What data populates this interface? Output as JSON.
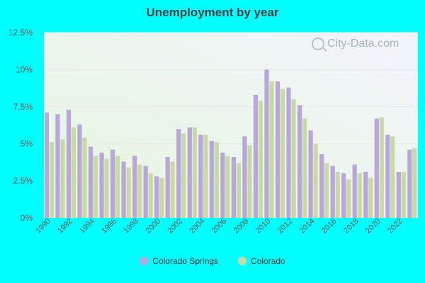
{
  "chart_data": {
    "type": "bar",
    "title": "Unemployment by year",
    "xlabel": "",
    "ylabel": "",
    "ylim": [
      0,
      12.5
    ],
    "y_ticks": [
      "0%",
      "2.5%",
      "5%",
      "7.5%",
      "10%",
      "12.5%"
    ],
    "x_tick_labels": [
      "1990",
      "1992",
      "1994",
      "1996",
      "1998",
      "2000",
      "2002",
      "2004",
      "2006",
      "2008",
      "2010",
      "2012",
      "2014",
      "2016",
      "2018",
      "2020",
      "2022"
    ],
    "categories": [
      "1990",
      "1991",
      "1992",
      "1993",
      "1994",
      "1995",
      "1996",
      "1997",
      "1998",
      "1999",
      "2000",
      "2001",
      "2002",
      "2003",
      "2004",
      "2005",
      "2006",
      "2007",
      "2008",
      "2009",
      "2010",
      "2011",
      "2012",
      "2013",
      "2014",
      "2015",
      "2016",
      "2017",
      "2018",
      "2019",
      "2020",
      "2021",
      "2022",
      "2023"
    ],
    "series": [
      {
        "name": "Colorado Springs",
        "color": "#b8a7db",
        "values": [
          7.1,
          7.0,
          7.3,
          6.3,
          4.8,
          4.4,
          4.6,
          3.8,
          4.2,
          3.5,
          2.8,
          4.1,
          6.0,
          6.1,
          5.6,
          5.2,
          4.4,
          4.1,
          5.5,
          8.3,
          10.0,
          9.2,
          8.8,
          7.6,
          5.9,
          4.3,
          3.5,
          3.0,
          3.6,
          3.1,
          6.7,
          5.6,
          3.1,
          4.6
        ]
      },
      {
        "name": "Colorado",
        "color": "#c8d9a6",
        "values": [
          5.1,
          5.3,
          6.1,
          5.4,
          4.2,
          4.0,
          4.2,
          3.4,
          3.6,
          3.0,
          2.7,
          3.8,
          5.7,
          6.1,
          5.6,
          5.1,
          4.2,
          3.7,
          4.9,
          7.9,
          9.2,
          8.7,
          8.0,
          6.7,
          5.0,
          3.7,
          3.1,
          2.6,
          3.0,
          2.7,
          6.8,
          5.5,
          3.1,
          4.7
        ]
      }
    ],
    "grid": true,
    "legend_position": "bottom"
  },
  "watermark": "City-Data.com"
}
